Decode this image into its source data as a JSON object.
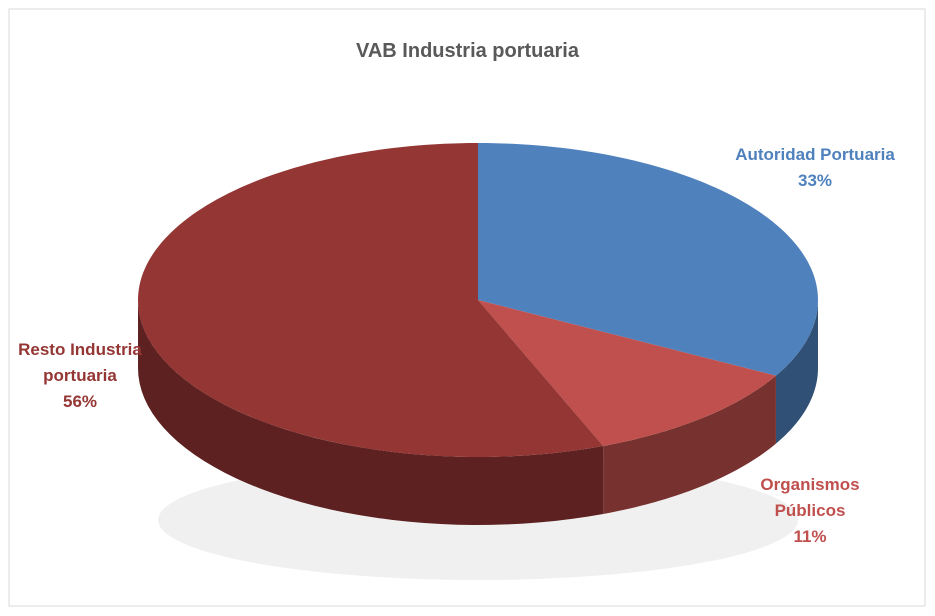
{
  "chart_data": {
    "type": "pie",
    "title": "VAB Industria portuaria",
    "categories": [
      "Autoridad Portuaria",
      "Organismos Públicos",
      "Resto Industria portuaria"
    ],
    "values": [
      33,
      11,
      56
    ],
    "value_labels": [
      "33%",
      "11%",
      "56%"
    ],
    "colors": [
      "#4f81bd",
      "#c0504d",
      "#943634"
    ]
  }
}
